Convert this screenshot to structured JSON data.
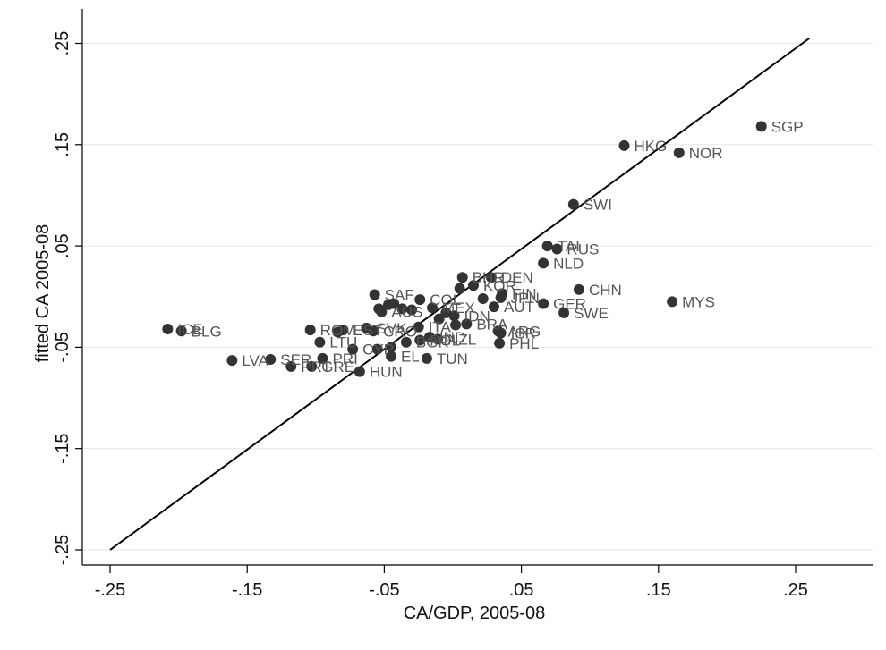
{
  "chart_data": {
    "type": "scatter",
    "xlabel": "CA/GDP, 2005-08",
    "ylabel": "fitted CA 2005-08",
    "xlim": [
      -0.25,
      0.3
    ],
    "ylim": [
      -0.27,
      0.27
    ],
    "xticks": [
      -0.25,
      -0.15,
      -0.05,
      0.05,
      0.15,
      0.25
    ],
    "xtick_labels": [
      "-.25",
      "-.15",
      "-.05",
      ".05",
      ".15",
      ".25"
    ],
    "yticks": [
      -0.25,
      -0.15,
      -0.05,
      0.05,
      0.15,
      0.25
    ],
    "ytick_labels": [
      "-.25",
      "-.15",
      "-.05",
      ".05",
      ".15",
      ".25"
    ],
    "grid": true,
    "fit_line": {
      "x": [
        -0.25,
        0.26
      ],
      "y": [
        -0.25,
        0.255
      ]
    },
    "points": [
      {
        "x": 0.225,
        "y": 0.168,
        "label": "SGP"
      },
      {
        "x": 0.125,
        "y": 0.149,
        "label": "HKG"
      },
      {
        "x": 0.165,
        "y": 0.142,
        "label": "NOR"
      },
      {
        "x": 0.088,
        "y": 0.091,
        "label": "SWI"
      },
      {
        "x": 0.069,
        "y": 0.05,
        "label": "TAI"
      },
      {
        "x": 0.076,
        "y": 0.047,
        "label": "RUS"
      },
      {
        "x": 0.066,
        "y": 0.033,
        "label": "NLD"
      },
      {
        "x": 0.092,
        "y": 0.007,
        "label": "CHN"
      },
      {
        "x": 0.16,
        "y": -0.005,
        "label": "MYS"
      },
      {
        "x": 0.081,
        "y": -0.016,
        "label": "SWE"
      },
      {
        "x": 0.066,
        "y": -0.007,
        "label": "GER"
      },
      {
        "x": 0.028,
        "y": 0.019,
        "label": "DEN"
      },
      {
        "x": 0.007,
        "y": 0.019,
        "label": "BHR"
      },
      {
        "x": 0.015,
        "y": 0.011,
        "label": "KOR"
      },
      {
        "x": 0.005,
        "y": 0.008,
        "label": ""
      },
      {
        "x": 0.036,
        "y": 0.003,
        "label": "FIN"
      },
      {
        "x": 0.035,
        "y": -0.001,
        "label": "JPN"
      },
      {
        "x": 0.03,
        "y": -0.01,
        "label": "AUT"
      },
      {
        "x": 0.022,
        "y": -0.002,
        "label": ""
      },
      {
        "x": 0.033,
        "y": -0.034,
        "label": "ARG"
      },
      {
        "x": 0.035,
        "y": -0.036,
        "label": "ISR"
      },
      {
        "x": 0.034,
        "y": -0.046,
        "label": "PHL"
      },
      {
        "x": -0.057,
        "y": 0.002,
        "label": "SAF"
      },
      {
        "x": -0.024,
        "y": -0.003,
        "label": "COL"
      },
      {
        "x": -0.043,
        "y": -0.007,
        "label": ""
      },
      {
        "x": -0.047,
        "y": -0.008,
        "label": ""
      },
      {
        "x": -0.054,
        "y": -0.012,
        "label": ""
      },
      {
        "x": -0.052,
        "y": -0.015,
        "label": "AUS"
      },
      {
        "x": -0.037,
        "y": -0.012,
        "label": ""
      },
      {
        "x": -0.03,
        "y": -0.013,
        "label": ""
      },
      {
        "x": -0.015,
        "y": -0.011,
        "label": "MEX"
      },
      {
        "x": -0.005,
        "y": -0.016,
        "label": ""
      },
      {
        "x": 0.001,
        "y": -0.019,
        "label": "IDN"
      },
      {
        "x": -0.01,
        "y": -0.022,
        "label": ""
      },
      {
        "x": 0.01,
        "y": -0.027,
        "label": "BRA"
      },
      {
        "x": 0.002,
        "y": -0.028,
        "label": ""
      },
      {
        "x": -0.025,
        "y": -0.03,
        "label": "ITA"
      },
      {
        "x": -0.104,
        "y": -0.033,
        "label": "ROM"
      },
      {
        "x": -0.084,
        "y": -0.035,
        "label": ""
      },
      {
        "x": -0.08,
        "y": -0.033,
        "label": "EST"
      },
      {
        "x": -0.063,
        "y": -0.031,
        "label": "SVK"
      },
      {
        "x": -0.058,
        "y": -0.034,
        "label": "CRO"
      },
      {
        "x": -0.097,
        "y": -0.045,
        "label": "LTU"
      },
      {
        "x": -0.073,
        "y": -0.052,
        "label": "CYP"
      },
      {
        "x": -0.045,
        "y": -0.05,
        "label": ""
      },
      {
        "x": -0.055,
        "y": -0.052,
        "label": ""
      },
      {
        "x": -0.034,
        "y": -0.045,
        "label": "BGR"
      },
      {
        "x": -0.024,
        "y": -0.043,
        "label": "POL"
      },
      {
        "x": -0.017,
        "y": -0.04,
        "label": "IND"
      },
      {
        "x": -0.011,
        "y": -0.042,
        "label": "NZL"
      },
      {
        "x": -0.045,
        "y": -0.059,
        "label": "EL"
      },
      {
        "x": -0.019,
        "y": -0.061,
        "label": "TUN"
      },
      {
        "x": -0.208,
        "y": -0.032,
        "label": "ICE"
      },
      {
        "x": -0.198,
        "y": -0.034,
        "label": "BLG"
      },
      {
        "x": -0.161,
        "y": -0.063,
        "label": "LVA"
      },
      {
        "x": -0.133,
        "y": -0.062,
        "label": "SER"
      },
      {
        "x": -0.118,
        "y": -0.069,
        "label": "PRT"
      },
      {
        "x": -0.095,
        "y": -0.061,
        "label": "PRI"
      },
      {
        "x": -0.103,
        "y": -0.069,
        "label": "GRE"
      },
      {
        "x": -0.068,
        "y": -0.074,
        "label": "HUN"
      }
    ]
  }
}
